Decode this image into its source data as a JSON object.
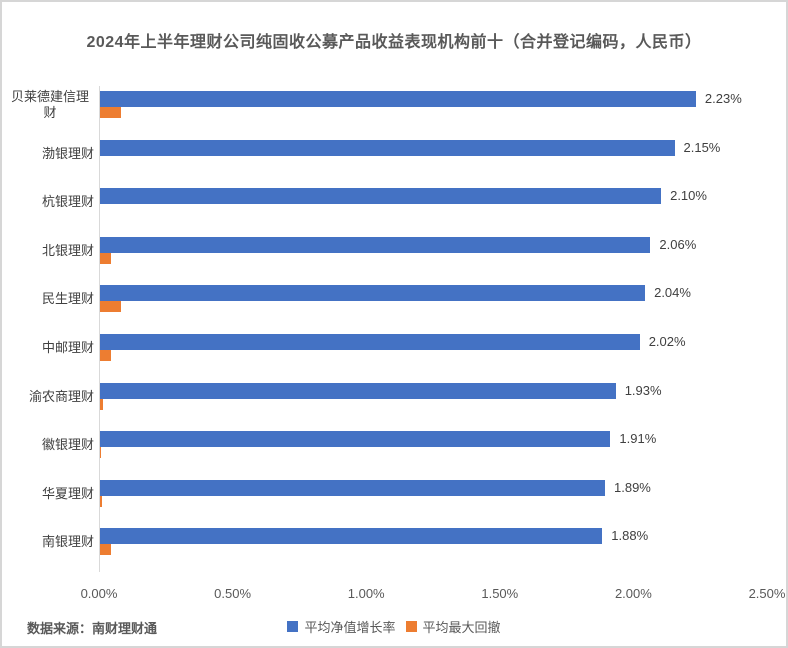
{
  "title": "2024年上半年理财公司纯固收公募产品收益表现机构前十（合并登记编码，人民币）",
  "footer": {
    "source": "数据来源：南财理财通"
  },
  "colors": {
    "growth_bar": "#4472C4",
    "drawdown_bar": "#ED7D31",
    "axis_line": "#d9d9d9",
    "border": "#d6d6d6",
    "title_text": "#595959",
    "label_text": "#404040",
    "tick_text": "#595959"
  },
  "chart_data": {
    "type": "bar",
    "orientation": "horizontal",
    "title": "2024年上半年理财公司纯固收公募产品收益表现机构前十（合并登记编码，人民币）",
    "categories": [
      "贝莱德建信理财",
      "渤银理财",
      "杭银理财",
      "北银理财",
      "民生理财",
      "中邮理财",
      "渝农商理财",
      "徽银理财",
      "华夏理财",
      "南银理财"
    ],
    "series": [
      {
        "name": "平均净值增长率",
        "color": "#4472C4",
        "values": [
          2.23,
          2.15,
          2.1,
          2.06,
          2.04,
          2.02,
          1.93,
          1.91,
          1.89,
          1.88
        ],
        "labels": [
          "2.23%",
          "2.15%",
          "2.10%",
          "2.06%",
          "2.04%",
          "2.02%",
          "1.93%",
          "1.91%",
          "1.89%",
          "1.88%"
        ]
      },
      {
        "name": "平均最大回撤",
        "color": "#ED7D31",
        "values": [
          0.08,
          0,
          0,
          0.04,
          0.08,
          0.04,
          0.01,
          0.005,
          0.008,
          0.04
        ],
        "labels": null
      }
    ],
    "xlabel": "",
    "ylabel": "",
    "xlim": [
      0,
      2.5
    ],
    "x_ticks": [
      "0.00%",
      "0.50%",
      "1.00%",
      "1.50%",
      "2.00%",
      "2.50%"
    ],
    "x_tick_values": [
      0,
      0.5,
      1.0,
      1.5,
      2.0,
      2.5
    ],
    "gridlines": false,
    "data_labels": true,
    "legend_position": "bottom"
  },
  "legend": [
    {
      "label": "平均净值增长率",
      "color": "#4472C4"
    },
    {
      "label": "平均最大回撤",
      "color": "#ED7D31"
    }
  ]
}
